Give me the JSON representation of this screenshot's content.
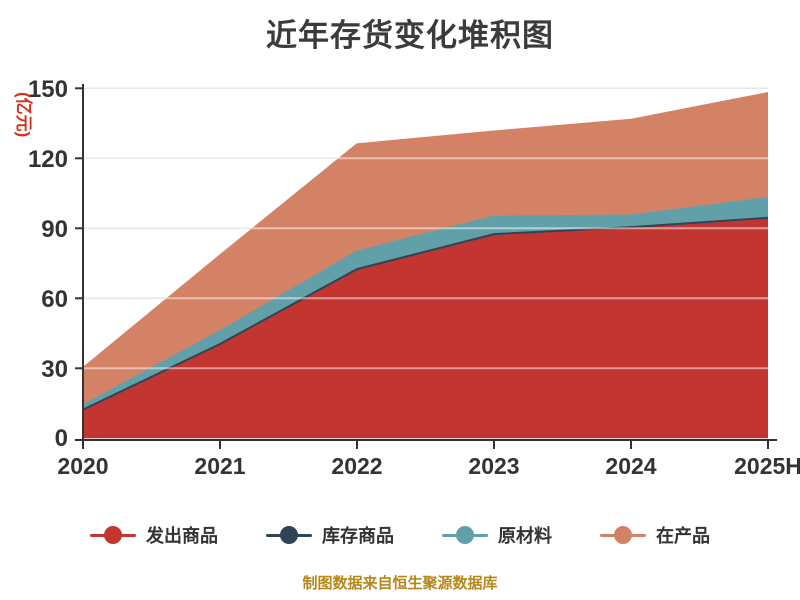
{
  "title": "近年存货变化堆积图",
  "chart_data": {
    "type": "area",
    "stacked": true,
    "title": "近年存货变化堆积图",
    "categories": [
      "2020",
      "2021",
      "2022",
      "2023",
      "2024",
      "2025H"
    ],
    "series": [
      {
        "name": "发出商品",
        "color": "#c23531",
        "values": [
          12,
          40,
          72,
          87,
          90,
          94
        ]
      },
      {
        "name": "库存商品",
        "color": "#2f4554",
        "values": [
          0.3,
          0.4,
          0.5,
          0.5,
          0.5,
          0.5
        ]
      },
      {
        "name": "原材料",
        "color": "#61a0a8",
        "values": [
          1.8,
          5.5,
          7.5,
          7.5,
          5,
          8.5
        ]
      },
      {
        "name": "在产品",
        "color": "#d48265",
        "values": [
          16,
          32.5,
          46,
          36.5,
          41,
          45
        ]
      }
    ],
    "xlabel": "",
    "ylabel": "(亿元)",
    "ylabel_color": "#d6301d",
    "ylim": [
      0,
      150
    ],
    "yticks": [
      0,
      30,
      60,
      90,
      120,
      150
    ],
    "grid": true,
    "legend_position": "bottom"
  },
  "legend": {
    "items": [
      {
        "label": "发出商品",
        "color": "#c23531"
      },
      {
        "label": "库存商品",
        "color": "#2f4554"
      },
      {
        "label": "原材料",
        "color": "#61a0a8"
      },
      {
        "label": "在产品",
        "color": "#d48265"
      }
    ]
  },
  "caption": {
    "text": "制图数据来自恒生聚源数据库",
    "color": "#b8871a"
  },
  "axis": {
    "line_color": "#333333",
    "grid_color": "#cfcfcf"
  }
}
